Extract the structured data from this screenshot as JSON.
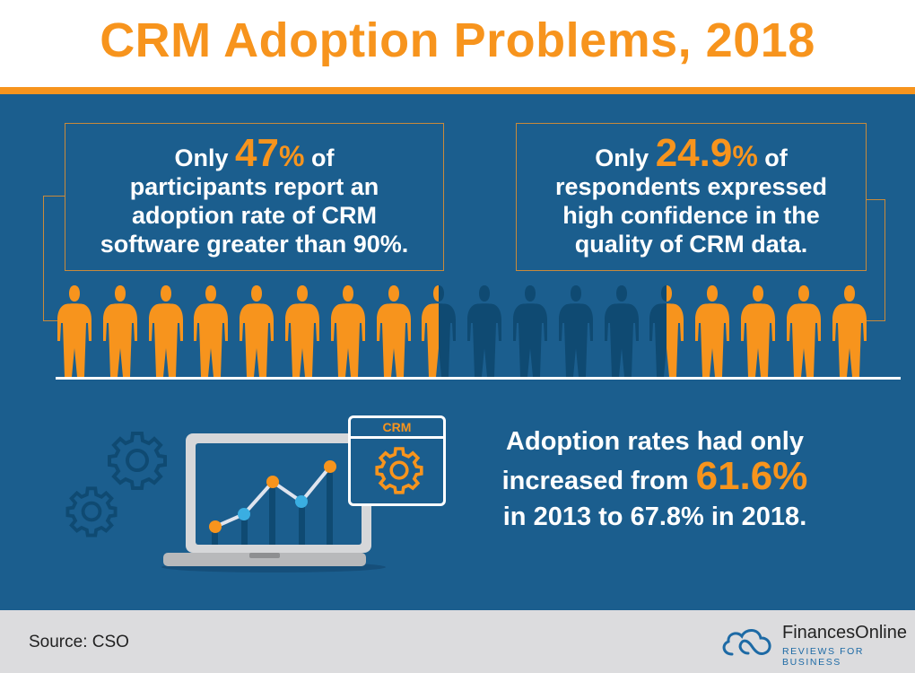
{
  "title": "CRM Adoption Problems, 2018",
  "stat_left": {
    "pre": "Only ",
    "value": "47",
    "pct": "%",
    "post": " of",
    "lines": [
      "participants report an",
      "adoption rate of CRM"
    ],
    "last_pre": "software greater than ",
    "last_bold": "90%."
  },
  "stat_right": {
    "pre": "Only ",
    "value": "24.9",
    "pct": "%",
    "post": " of",
    "lines": [
      "respondents expressed",
      "high confidence in the",
      "quality of CRM data."
    ]
  },
  "people": [
    "orange",
    "orange",
    "orange",
    "orange",
    "orange",
    "orange",
    "orange",
    "orange",
    "half-left-orange",
    "dark",
    "dark",
    "dark",
    "dark",
    "half-right-orange",
    "orange",
    "orange",
    "orange",
    "orange"
  ],
  "colors": {
    "orange": "#f7941d",
    "dark": "#0f4a72",
    "background": "#1b5e8e",
    "footer": "#dcdcde"
  },
  "crm_window_label": "CRM",
  "adoption": {
    "line1": "Adoption rates had only",
    "line2_pre": "increased from ",
    "line2_big": "61.6%",
    "line3": "in 2013 to 67.8% in 2018."
  },
  "footer": {
    "source": "Source: CSO",
    "logo_name": "FinancesOnline",
    "logo_tagline": "REVIEWS FOR BUSINESS"
  }
}
